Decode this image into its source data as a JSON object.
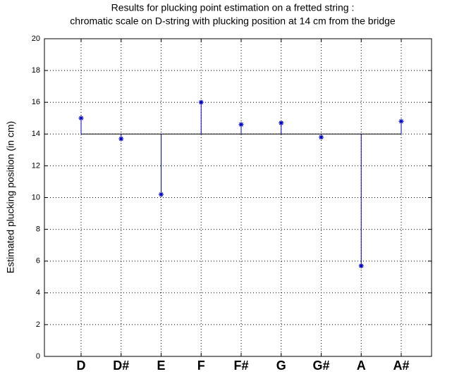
{
  "chart_data": {
    "type": "stem",
    "title": "Results for plucking point estimation on a fretted string :",
    "subtitle": "chromatic scale on D-string with plucking position at 14 cm from the bridge",
    "y_label": "Estimated plucking position (in cm)",
    "categories": [
      "D",
      "D#",
      "E",
      "F",
      "F#",
      "G",
      "G#",
      "A",
      "A#"
    ],
    "values": [
      15,
      13.7,
      10.2,
      16,
      14.6,
      14.7,
      13.8,
      5.7,
      14.8
    ],
    "baseline": 14,
    "color": "#0000cc",
    "ylim": [
      0,
      20
    ],
    "yticks": [
      0,
      2,
      4,
      6,
      8,
      10,
      12,
      14,
      16,
      18,
      20
    ],
    "grid": true
  }
}
